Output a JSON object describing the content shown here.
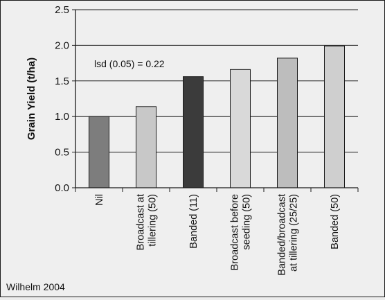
{
  "chart_data": {
    "type": "bar",
    "ylabel": "Grain Yield (t/ha)",
    "xlabel": "",
    "ylim": [
      0,
      2.5
    ],
    "yticks": [
      "0.0",
      "0.5",
      "1.0",
      "1.5",
      "2.0",
      "2.5"
    ],
    "grid": true,
    "categories": [
      [
        "Nil"
      ],
      [
        "Broadcast at",
        "tillering (50)"
      ],
      [
        "Banded (11)"
      ],
      [
        "Broadcast before",
        "seeding (50)"
      ],
      [
        "Banded/broadcast",
        "at tillering (25/25)"
      ],
      [
        "Banded (50)"
      ]
    ],
    "values": [
      1.0,
      1.14,
      1.56,
      1.66,
      1.82,
      1.99
    ],
    "bar_colors": [
      "#7d7d7d",
      "#c8c8c8",
      "#3b3b3b",
      "#d9d9d9",
      "#bdbdbd",
      "#cfcfcf"
    ],
    "annotation": "lsd (0.05) = 0.22",
    "source": "Wilhelm 2004"
  }
}
